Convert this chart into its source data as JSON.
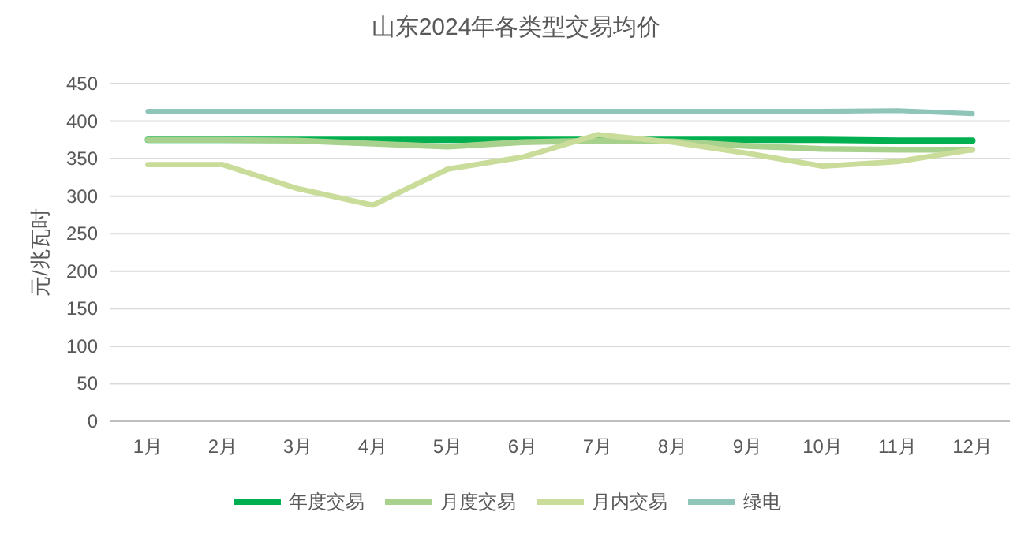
{
  "chart_data": {
    "type": "line",
    "title": "山东2024年各类型交易均价",
    "ylabel": "元/兆瓦时",
    "categories": [
      "1月",
      "2月",
      "3月",
      "4月",
      "5月",
      "6月",
      "7月",
      "8月",
      "9月",
      "10月",
      "11月",
      "12月"
    ],
    "series": [
      {
        "name": "年度交易",
        "color": "#00b050",
        "values": [
          375,
          375,
          375,
          375,
          375,
          375,
          375,
          375,
          375,
          375,
          374,
          374
        ]
      },
      {
        "name": "月度交易",
        "color": "#a9d18e",
        "values": [
          375,
          375,
          374,
          370,
          366,
          372,
          374,
          373,
          367,
          363,
          362,
          362
        ]
      },
      {
        "name": "月内交易",
        "color": "#c9dc9a",
        "values": [
          342,
          342,
          310,
          288,
          336,
          352,
          382,
          372,
          357,
          340,
          346,
          362
        ]
      },
      {
        "name": "绿电",
        "color": "#8fc5b8",
        "values": [
          413,
          413,
          413,
          413,
          413,
          413,
          413,
          413,
          413,
          413,
          414,
          410
        ]
      }
    ],
    "ylim": [
      0,
      450
    ],
    "yticks": [
      0,
      50,
      100,
      150,
      200,
      250,
      300,
      350,
      400,
      450
    ],
    "grid": "y",
    "legend": "bottom",
    "marker": "none",
    "line_style": "solid"
  }
}
